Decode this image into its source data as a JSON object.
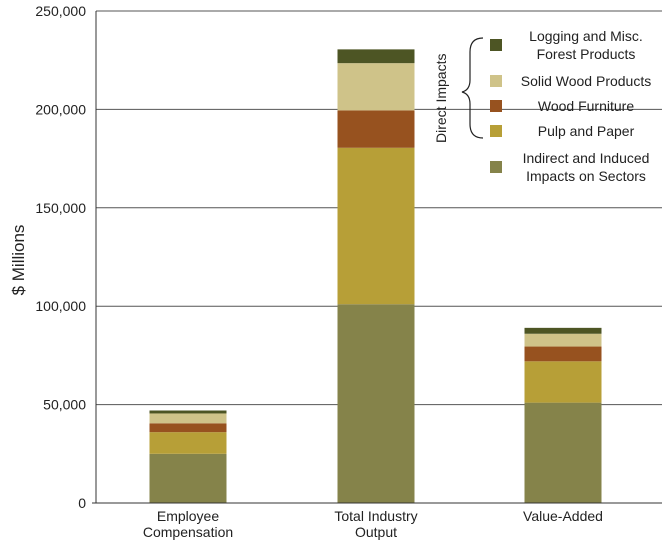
{
  "chart_data": {
    "type": "bar",
    "stacked": true,
    "categories": [
      [
        "Employee",
        "Compensation"
      ],
      [
        "Total Industry",
        "Output"
      ],
      [
        "Value-Added"
      ]
    ],
    "series": [
      {
        "name": "Indirect and Induced Impacts on Sectors",
        "label_lines": [
          "Indirect and Induced",
          "Impacts on Sectors"
        ],
        "color": "#85834a",
        "values": [
          25000,
          101000,
          51000
        ]
      },
      {
        "name": "Pulp and Paper",
        "label_lines": [
          "Pulp and Paper"
        ],
        "color": "#b79f37",
        "values": [
          11000,
          79500,
          21000
        ]
      },
      {
        "name": "Wood Furniture",
        "label_lines": [
          "Wood Furniture"
        ],
        "color": "#97521f",
        "values": [
          4500,
          19000,
          7500
        ]
      },
      {
        "name": "Solid Wood Products",
        "label_lines": [
          "Solid Wood Products"
        ],
        "color": "#cfc389",
        "values": [
          5000,
          24000,
          6500
        ]
      },
      {
        "name": "Logging and Misc. Forest Products",
        "label_lines": [
          "Logging and Misc.",
          "Forest Products"
        ],
        "color": "#4d5524",
        "values": [
          1500,
          7000,
          3000
        ]
      }
    ],
    "ylabel": "$ Millions",
    "ylim": [
      0,
      250000
    ],
    "yticks": [
      "0",
      "50,000",
      "100,000",
      "150,000",
      "200,000",
      "250,000"
    ],
    "ytick_values": [
      0,
      50000,
      100000,
      150000,
      200000,
      250000
    ],
    "grid": true,
    "legend_bracket_label": "Direct Impacts",
    "legend_position": "top-right"
  }
}
